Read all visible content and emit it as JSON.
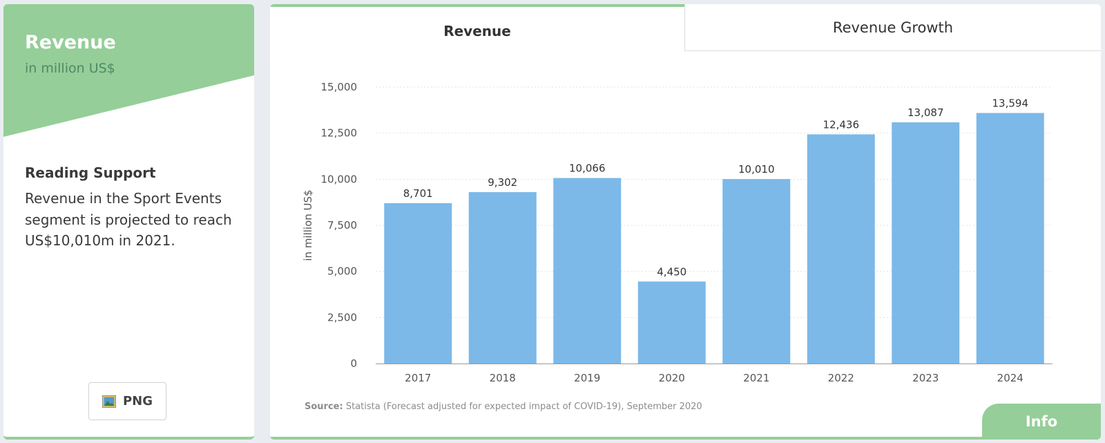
{
  "left": {
    "title": "Revenue",
    "subtitle": "in million US$",
    "reading_heading": "Reading Support",
    "reading_text": "Revenue in the Sport Events segment is projected to reach US$10,010m in 2021.",
    "png_label": "PNG",
    "banner_color": "#95ce98"
  },
  "tabs": {
    "active": "Revenue",
    "inactive": "Revenue Growth"
  },
  "source": {
    "label": "Source:",
    "text": " Statista (Forecast adjusted for expected impact of COVID-19), September 2020"
  },
  "info_label": "Info",
  "chart_data": {
    "type": "bar",
    "categories": [
      "2017",
      "2018",
      "2019",
      "2020",
      "2021",
      "2022",
      "2023",
      "2024"
    ],
    "values": [
      8701,
      9302,
      10066,
      4450,
      10010,
      12436,
      13087,
      13594
    ],
    "value_labels": [
      "8,701",
      "9,302",
      "10,066",
      "4,450",
      "10,010",
      "12,436",
      "13,087",
      "13,594"
    ],
    "ylabel": "in million US$",
    "ylim": [
      0,
      15000
    ],
    "yticks": [
      0,
      2500,
      5000,
      7500,
      10000,
      12500,
      15000
    ],
    "ytick_labels": [
      "0",
      "2,500",
      "5,000",
      "7,500",
      "10,000",
      "12,500",
      "15,000"
    ],
    "bar_color": "#7cb9e8",
    "grid": true
  }
}
